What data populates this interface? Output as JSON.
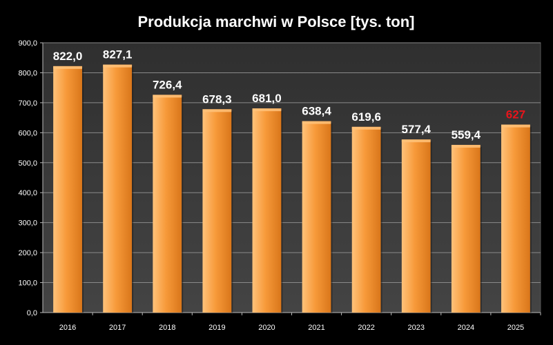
{
  "chart_data": {
    "type": "bar",
    "title": "Produkcja marchwi w Polsce [tys. ton]",
    "xlabel": "",
    "ylabel": "",
    "categories": [
      "2016",
      "2017",
      "2018",
      "2019",
      "2020",
      "2021",
      "2022",
      "2023",
      "2024",
      "2025"
    ],
    "values": [
      822.0,
      827.1,
      726.4,
      678.3,
      681.0,
      638.4,
      619.6,
      577.4,
      559.4,
      627
    ],
    "data_labels": [
      "822,0",
      "827,1",
      "726,4",
      "678,3",
      "681,0",
      "638,4",
      "619,6",
      "577,4",
      "559,4",
      "627"
    ],
    "data_label_colors": [
      "#ffffff",
      "#ffffff",
      "#ffffff",
      "#ffffff",
      "#ffffff",
      "#ffffff",
      "#ffffff",
      "#ffffff",
      "#ffffff",
      "#e8141b"
    ],
    "ylim": [
      0,
      900
    ],
    "yticks": [
      0,
      100,
      200,
      300,
      400,
      500,
      600,
      700,
      800,
      900
    ],
    "ytick_labels": [
      "0,0",
      "100,0",
      "200,0",
      "300,0",
      "400,0",
      "500,0",
      "600,0",
      "700,0",
      "800,0",
      "900,0"
    ],
    "grid": true,
    "legend": "none",
    "colors": {
      "page_background": "#000000",
      "plot_background": "#3a3a3a",
      "bar_light": "#ffc27a",
      "bar_main": "#f79a3a",
      "bar_dark": "#d9761a",
      "gridline": "#8a8a8a",
      "text": "#ffffff"
    }
  }
}
